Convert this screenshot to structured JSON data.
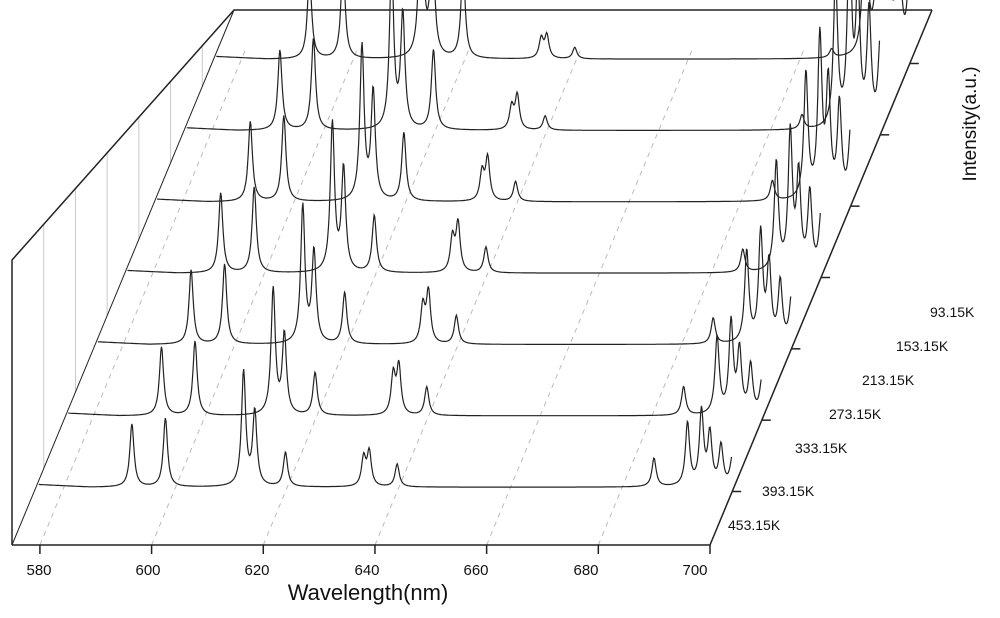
{
  "chart_data": {
    "type": "line",
    "projection": "3d-waterfall",
    "xlabel": "Wavelength(nm)",
    "zlabel": "Intensity(a.u.)",
    "xlim": [
      575,
      700
    ],
    "xticks": [
      "580",
      "600",
      "620",
      "640",
      "660",
      "680",
      "700"
    ],
    "tick_values": [
      580,
      600,
      620,
      640,
      660,
      680,
      700
    ],
    "grid": true,
    "series": [
      {
        "name": "93.15K",
        "peaks": [
          [
            592.5,
            0.3
          ],
          [
            598.5,
            0.34
          ],
          [
            612.5,
            0.62
          ],
          [
            614.5,
            0.42
          ],
          [
            620,
            0.32
          ],
          [
            634,
            0.07
          ],
          [
            635,
            0.08
          ],
          [
            640,
            0.04
          ],
          [
            686,
            0.03
          ],
          [
            692,
            0.6
          ],
          [
            694.5,
            0.74
          ],
          [
            696,
            0.55
          ],
          [
            698,
            0.47
          ],
          [
            700,
            0.34
          ]
        ]
      },
      {
        "name": "153.15K",
        "peaks": [
          [
            592.5,
            0.28
          ],
          [
            598.5,
            0.32
          ],
          [
            612.5,
            0.58
          ],
          [
            614.5,
            0.4
          ],
          [
            620,
            0.28
          ],
          [
            634,
            0.08
          ],
          [
            635,
            0.12
          ],
          [
            640,
            0.05
          ],
          [
            686,
            0.05
          ],
          [
            692,
            0.52
          ],
          [
            694.5,
            0.66
          ],
          [
            696,
            0.48
          ],
          [
            698,
            0.4
          ],
          [
            700,
            0.3
          ]
        ]
      },
      {
        "name": "213.15K",
        "peaks": [
          [
            592.5,
            0.28
          ],
          [
            598.5,
            0.3
          ],
          [
            612.5,
            0.54
          ],
          [
            614.5,
            0.38
          ],
          [
            620,
            0.24
          ],
          [
            634,
            0.1
          ],
          [
            635,
            0.15
          ],
          [
            640,
            0.07
          ],
          [
            686,
            0.07
          ],
          [
            692,
            0.44
          ],
          [
            694.5,
            0.56
          ],
          [
            696,
            0.4
          ],
          [
            698,
            0.33
          ],
          [
            700,
            0.24
          ]
        ]
      },
      {
        "name": "273.15K",
        "peaks": [
          [
            592.5,
            0.28
          ],
          [
            598.5,
            0.3
          ],
          [
            612.5,
            0.52
          ],
          [
            614.5,
            0.36
          ],
          [
            620,
            0.2
          ],
          [
            634,
            0.12
          ],
          [
            635,
            0.17
          ],
          [
            640,
            0.09
          ],
          [
            686,
            0.08
          ],
          [
            692,
            0.38
          ],
          [
            694.5,
            0.48
          ],
          [
            696,
            0.33
          ],
          [
            698,
            0.27
          ],
          [
            700,
            0.2
          ]
        ]
      },
      {
        "name": "333.15K",
        "peaks": [
          [
            592.5,
            0.26
          ],
          [
            598.5,
            0.28
          ],
          [
            612.5,
            0.48
          ],
          [
            614.5,
            0.32
          ],
          [
            620,
            0.18
          ],
          [
            634,
            0.13
          ],
          [
            635,
            0.18
          ],
          [
            640,
            0.1
          ],
          [
            686,
            0.09
          ],
          [
            692,
            0.32
          ],
          [
            694.5,
            0.38
          ],
          [
            696,
            0.27
          ],
          [
            698,
            0.21
          ],
          [
            700,
            0.16
          ]
        ]
      },
      {
        "name": "393.15K",
        "peaks": [
          [
            592.5,
            0.24
          ],
          [
            598.5,
            0.26
          ],
          [
            612.5,
            0.44
          ],
          [
            614.5,
            0.28
          ],
          [
            620,
            0.15
          ],
          [
            634,
            0.14
          ],
          [
            635,
            0.17
          ],
          [
            640,
            0.1
          ],
          [
            686,
            0.1
          ],
          [
            692,
            0.27
          ],
          [
            694.5,
            0.32
          ],
          [
            696,
            0.22
          ],
          [
            698,
            0.17
          ],
          [
            700,
            0.12
          ]
        ]
      },
      {
        "name": "453.15K",
        "peaks": [
          [
            592.5,
            0.22
          ],
          [
            598.5,
            0.24
          ],
          [
            612.5,
            0.4
          ],
          [
            614.5,
            0.26
          ],
          [
            620,
            0.12
          ],
          [
            634,
            0.1
          ],
          [
            635,
            0.12
          ],
          [
            640,
            0.08
          ],
          [
            686,
            0.1
          ],
          [
            692,
            0.22
          ],
          [
            694.5,
            0.26
          ],
          [
            696,
            0.18
          ],
          [
            698,
            0.14
          ],
          [
            700,
            0.1
          ]
        ]
      }
    ]
  }
}
